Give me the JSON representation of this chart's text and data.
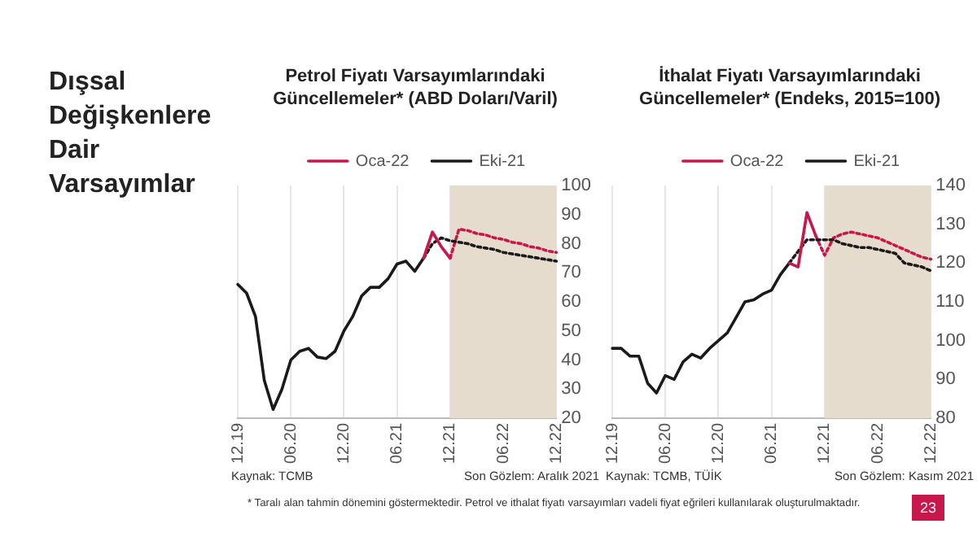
{
  "chart_data": [
    {
      "type": "other",
      "title": "Dışsal Değişkenlere Dair Varsayımlar",
      "annotations": [
        "* Taralı alan tahmin dönemini göstermektedir. Petrol ve ithalat fiyatı varsayımları vadeli fiyat eğrileri kullanılarak oluşturulmaktadır.",
        "23"
      ]
    },
    {
      "type": "line",
      "title": "Petrol Fiyatı Varsayımlarındaki Güncellemeler* (ABD Doları/Varil)",
      "categories": [
        "12.19",
        null,
        null,
        null,
        null,
        null,
        "06.20",
        null,
        null,
        null,
        null,
        null,
        "12.20",
        null,
        null,
        null,
        null,
        null,
        "06.21",
        null,
        null,
        null,
        null,
        null,
        "12.21",
        null,
        null,
        null,
        null,
        null,
        "06.22",
        null,
        null,
        null,
        null,
        null,
        "12.22"
      ],
      "series": [
        {
          "name": "Oca-22",
          "color": "#c8174b",
          "line_style": "solid",
          "values": [
            null,
            null,
            null,
            null,
            null,
            null,
            null,
            null,
            null,
            null,
            null,
            null,
            null,
            null,
            null,
            null,
            null,
            null,
            null,
            null,
            null,
            75,
            84,
            79,
            75,
            null,
            null,
            null,
            null,
            null,
            null,
            null,
            null,
            null,
            null,
            null,
            null
          ]
        },
        {
          "name": "Eki-21",
          "color": "#1a1a1a",
          "line_style": "solid",
          "values": [
            66,
            63,
            55,
            33,
            23,
            30,
            40,
            43,
            44,
            41,
            40.5,
            43,
            50,
            55,
            62,
            65,
            65,
            68,
            73,
            74,
            70.5,
            75,
            null,
            null,
            null,
            null,
            null,
            null,
            null,
            null,
            null,
            null,
            null,
            null,
            null,
            null,
            null
          ]
        },
        {
          "color": "#1a1a1a",
          "line_style": "dotted",
          "values": [
            null,
            null,
            null,
            null,
            null,
            null,
            null,
            null,
            null,
            null,
            null,
            null,
            null,
            null,
            null,
            null,
            null,
            null,
            null,
            null,
            null,
            75,
            80,
            82,
            81,
            80.5,
            80,
            79,
            78.5,
            78,
            77,
            76.5,
            76,
            75.5,
            75,
            74.5,
            74
          ]
        },
        {
          "color": "#c8174b",
          "line_style": "dotted",
          "values": [
            null,
            null,
            null,
            null,
            null,
            null,
            null,
            null,
            null,
            null,
            null,
            null,
            null,
            null,
            null,
            null,
            null,
            null,
            null,
            null,
            null,
            null,
            null,
            null,
            75,
            85,
            84.5,
            83.5,
            83,
            82,
            81.5,
            80.5,
            80,
            79,
            78.5,
            77.5,
            77
          ]
        }
      ],
      "ylim": [
        20,
        100
      ],
      "yticks": [
        20,
        30,
        40,
        50,
        60,
        70,
        80,
        90,
        100
      ],
      "grid": "x",
      "legend": "top",
      "bands": [
        {
          "axis": "x",
          "from": "12.21",
          "to": "12.22",
          "color": "#e5dccd"
        }
      ],
      "annotations": [
        "Kaynak: TCMB",
        "Son Gözlem: Aralık 2021"
      ]
    },
    {
      "type": "line",
      "title": "İthalat Fiyatı Varsayımlarındaki Güncellemeler* (Endeks, 2015=100)",
      "categories": [
        "12.19",
        null,
        null,
        null,
        null,
        null,
        "06.20",
        null,
        null,
        null,
        null,
        null,
        "12.20",
        null,
        null,
        null,
        null,
        null,
        "06.21",
        null,
        null,
        null,
        null,
        null,
        "12.21",
        null,
        null,
        null,
        null,
        null,
        "06.22",
        null,
        null,
        null,
        null,
        null,
        "12.22"
      ],
      "series": [
        {
          "name": "Oca-22",
          "color": "#c8174b",
          "line_style": "solid",
          "values": [
            null,
            null,
            null,
            null,
            null,
            null,
            null,
            null,
            null,
            null,
            null,
            null,
            null,
            null,
            null,
            null,
            null,
            null,
            null,
            null,
            120,
            119,
            133,
            127,
            null,
            null,
            null,
            null,
            null,
            null,
            null,
            null,
            null,
            null,
            null,
            null,
            null
          ]
        },
        {
          "name": "Eki-21",
          "color": "#1a1a1a",
          "line_style": "solid",
          "values": [
            98,
            98,
            96,
            96,
            89,
            86.5,
            91,
            90,
            94.5,
            96.5,
            95.5,
            98,
            100,
            102,
            106,
            110,
            110.5,
            112,
            113,
            117,
            120,
            null,
            null,
            null,
            null,
            null,
            null,
            null,
            null,
            null,
            null,
            null,
            null,
            null,
            null,
            null,
            null
          ]
        },
        {
          "color": "#1a1a1a",
          "line_style": "dotted",
          "values": [
            null,
            null,
            null,
            null,
            null,
            null,
            null,
            null,
            null,
            null,
            null,
            null,
            null,
            null,
            null,
            null,
            null,
            null,
            null,
            null,
            120,
            123,
            126,
            126,
            126,
            126,
            125,
            124.5,
            124,
            124,
            123.5,
            123,
            122.5,
            120,
            119.5,
            119,
            118
          ]
        },
        {
          "color": "#c8174b",
          "line_style": "dotted",
          "values": [
            null,
            null,
            null,
            null,
            null,
            null,
            null,
            null,
            null,
            null,
            null,
            null,
            null,
            null,
            null,
            null,
            null,
            null,
            null,
            null,
            null,
            null,
            null,
            127,
            122,
            126.5,
            127.5,
            128,
            127.5,
            127,
            126.5,
            125.5,
            124.5,
            123.5,
            122.5,
            121.5,
            121
          ]
        }
      ],
      "ylim": [
        80,
        140
      ],
      "yticks": [
        80,
        90,
        100,
        110,
        120,
        130,
        140
      ],
      "grid": "x",
      "legend": "top",
      "bands": [
        {
          "axis": "x",
          "from": "12.21",
          "to": "12.22",
          "color": "#e5dccd"
        }
      ],
      "annotations": [
        "Kaynak: TCMB, TÜİK",
        "Son Gözlem: Kasım 2021"
      ]
    }
  ]
}
